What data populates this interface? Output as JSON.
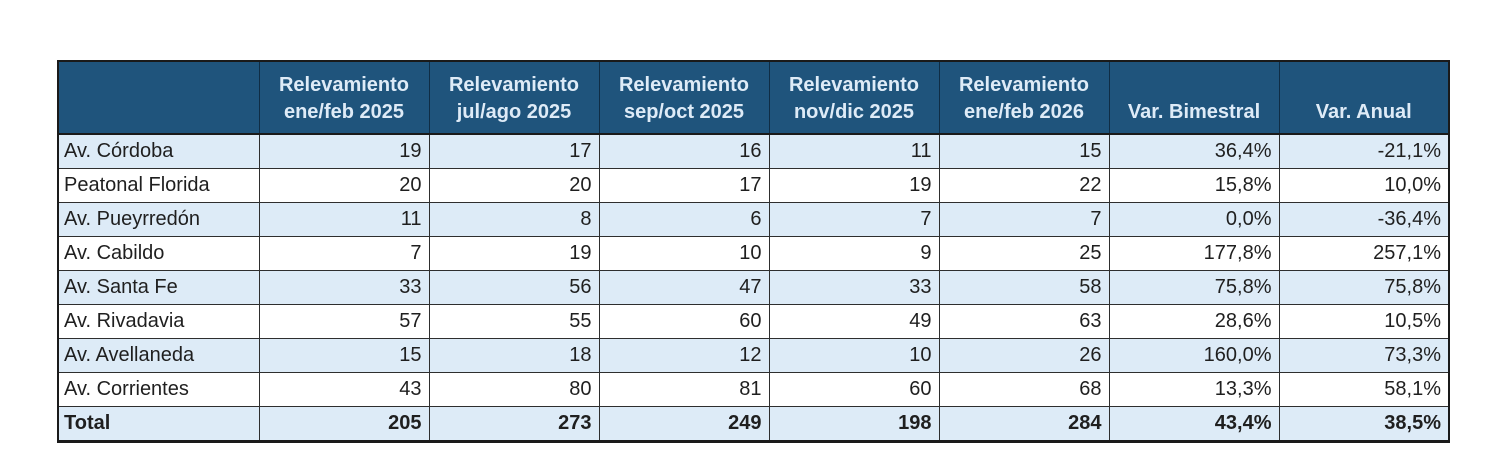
{
  "colors": {
    "header_bg": "#1F547C",
    "header_text": "#DEEBF7",
    "row_alt_bg": "#DDEBF7",
    "row_bg": "#FFFFFF",
    "text": "#1F1F1F",
    "border": "#2E2E2E"
  },
  "chart_data": {
    "type": "table",
    "title": "",
    "columns": [
      "",
      "Relevamiento ene/feb 2025",
      "Relevamiento jul/ago 2025",
      "Relevamiento sep/oct 2025",
      "Relevamiento nov/dic 2025",
      "Relevamiento ene/feb 2026",
      "Var. Bimestral",
      "Var. Anual"
    ],
    "header_lines": [
      [],
      [
        "Relevamiento",
        "ene/feb 2025"
      ],
      [
        "Relevamiento",
        "jul/ago 2025"
      ],
      [
        "Relevamiento",
        "sep/oct 2025"
      ],
      [
        "Relevamiento",
        "nov/dic 2025"
      ],
      [
        "Relevamiento",
        "ene/feb 2026"
      ],
      [
        "Var. Bimestral"
      ],
      [
        "Var. Anual"
      ]
    ],
    "rows": [
      {
        "label": "Av. Córdoba",
        "values": [
          "19",
          "17",
          "16",
          "11",
          "15",
          "36,4%",
          "-21,1%"
        ]
      },
      {
        "label": "Peatonal Florida",
        "values": [
          "20",
          "20",
          "17",
          "19",
          "22",
          "15,8%",
          "10,0%"
        ]
      },
      {
        "label": "Av. Pueyrredón",
        "values": [
          "11",
          "8",
          "6",
          "7",
          "7",
          "0,0%",
          "-36,4%"
        ]
      },
      {
        "label": "Av. Cabildo",
        "values": [
          "7",
          "19",
          "10",
          "9",
          "25",
          "177,8%",
          "257,1%"
        ]
      },
      {
        "label": "Av. Santa Fe",
        "values": [
          "33",
          "56",
          "47",
          "33",
          "58",
          "75,8%",
          "75,8%"
        ]
      },
      {
        "label": "Av. Rivadavia",
        "values": [
          "57",
          "55",
          "60",
          "49",
          "63",
          "28,6%",
          "10,5%"
        ]
      },
      {
        "label": "Av. Avellaneda",
        "values": [
          "15",
          "18",
          "12",
          "10",
          "26",
          "160,0%",
          "73,3%"
        ]
      },
      {
        "label": "Av. Corrientes",
        "values": [
          "43",
          "80",
          "81",
          "60",
          "68",
          "13,3%",
          "58,1%"
        ]
      }
    ],
    "total_row": {
      "label": "Total",
      "values": [
        "205",
        "273",
        "249",
        "198",
        "284",
        "43,4%",
        "38,5%"
      ]
    }
  }
}
